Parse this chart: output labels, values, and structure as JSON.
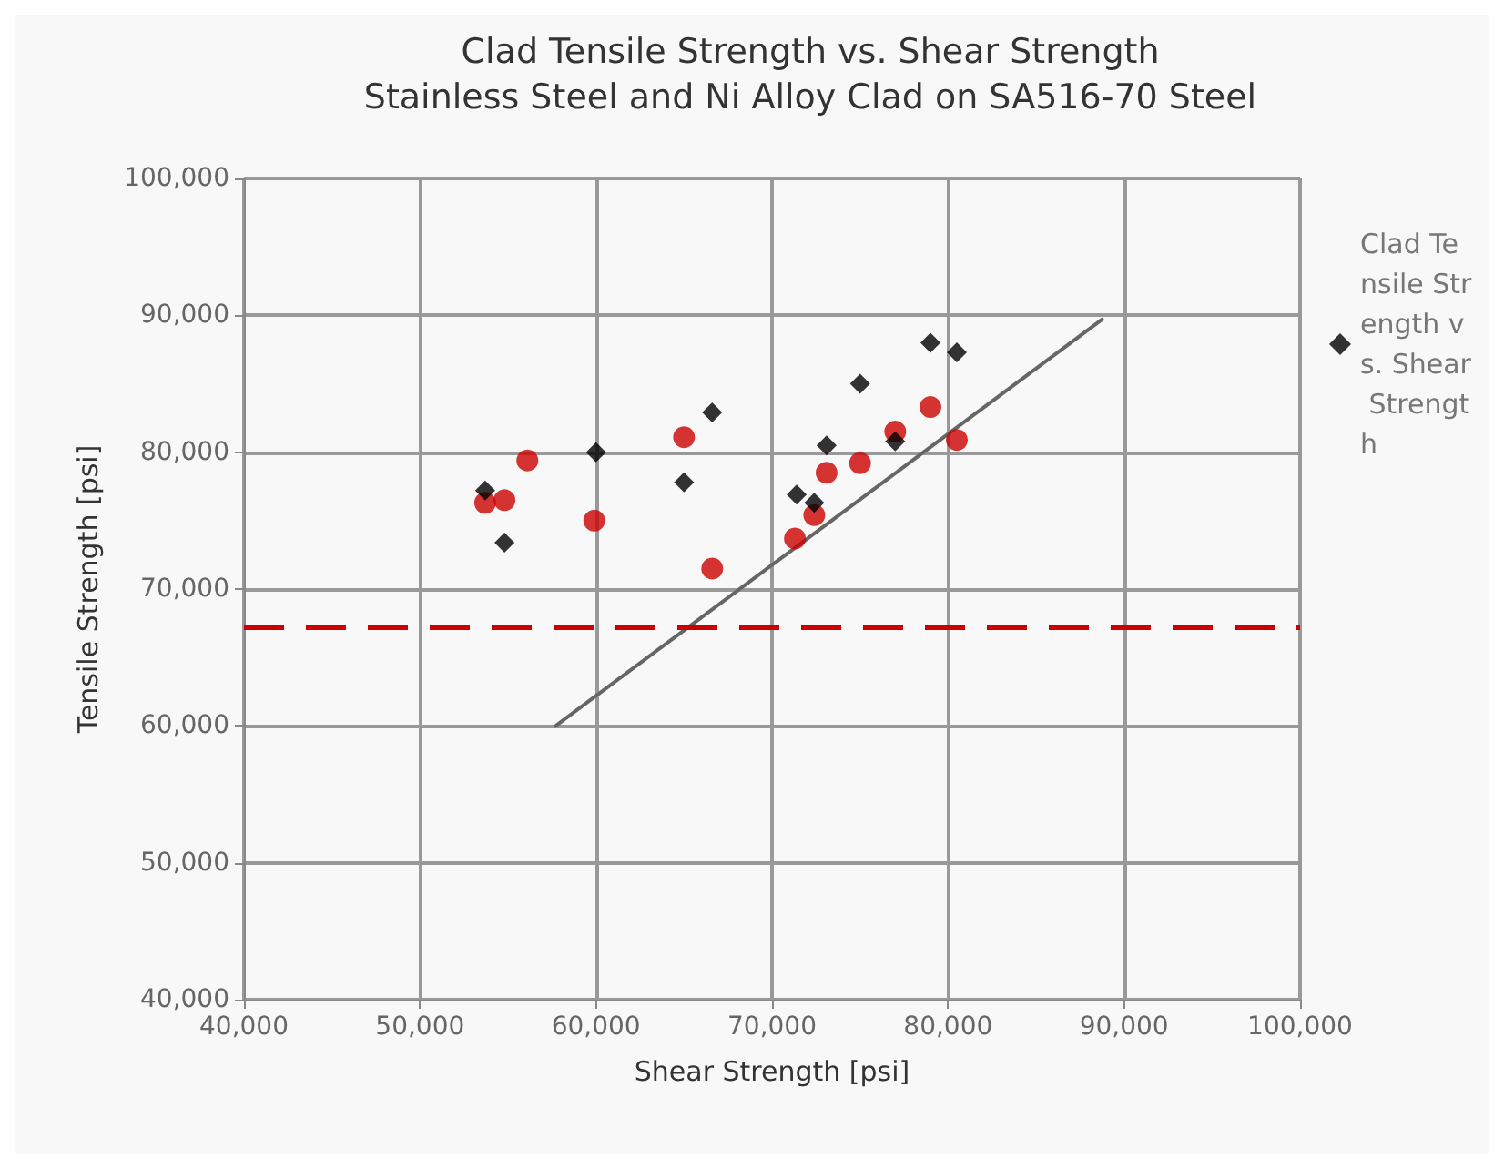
{
  "chart_data": {
    "type": "scatter",
    "title": "Clad Tensile Strength vs. Shear Strength",
    "subtitle": "Stainless Steel and Ni Alloy Clad on SA516-70 Steel",
    "xlabel": "Shear Strength [psi]",
    "ylabel": "Tensile Strength [psi]",
    "xlim": [
      40000,
      100000
    ],
    "xticks": [
      {
        "value": 40000,
        "label": "40,000"
      },
      {
        "value": 50000,
        "label": "50,000"
      },
      {
        "value": 60000,
        "label": "60,000"
      },
      {
        "value": 70000,
        "label": "70,000"
      },
      {
        "value": 80000,
        "label": "80,000"
      },
      {
        "value": 90000,
        "label": "90,000"
      },
      {
        "value": 100000,
        "label": "100,000"
      }
    ],
    "ylim": [
      40000,
      100000
    ],
    "yticks": [
      {
        "value": 40000,
        "label": "40,000"
      },
      {
        "value": 50000,
        "label": "50,000"
      },
      {
        "value": 60000,
        "label": "60,000"
      },
      {
        "value": 70000,
        "label": "70,000"
      },
      {
        "value": 80000,
        "label": "80,000"
      },
      {
        "value": 90000,
        "label": "90,000"
      },
      {
        "value": 100000,
        "label": "100,000"
      }
    ],
    "grid": true,
    "legend": "right",
    "series": [
      {
        "name": "Clad Tensile Strength vs. Shear Strength",
        "color": "#000000",
        "marker": "diamond",
        "x": [
          53700,
          54800,
          60000,
          65000,
          66600,
          71400,
          72400,
          73100,
          75000,
          77000,
          79000,
          80500
        ],
        "values": [
          77200,
          73400,
          80000,
          77800,
          82900,
          76900,
          76300,
          80500,
          85000,
          80800,
          88000,
          87300
        ]
      },
      {
        "color": "#cc0000",
        "marker": "circle",
        "x": [
          53700,
          54800,
          56100,
          59900,
          65000,
          66600,
          71300,
          72400,
          73100,
          75000,
          77000,
          79000,
          80500
        ],
        "values": [
          76300,
          76500,
          79400,
          75000,
          81100,
          71500,
          73700,
          75400,
          78500,
          79200,
          81500,
          83300,
          80900
        ]
      },
      {
        "type": "line",
        "color": "#666666",
        "marker": "none",
        "x": [
          57700,
          88750
        ],
        "values": [
          60000,
          89700
        ]
      }
    ],
    "ref_lines": [
      {
        "axis": "y",
        "value": 67300,
        "color": "#cc0000",
        "line_style": "dashed"
      }
    ]
  }
}
